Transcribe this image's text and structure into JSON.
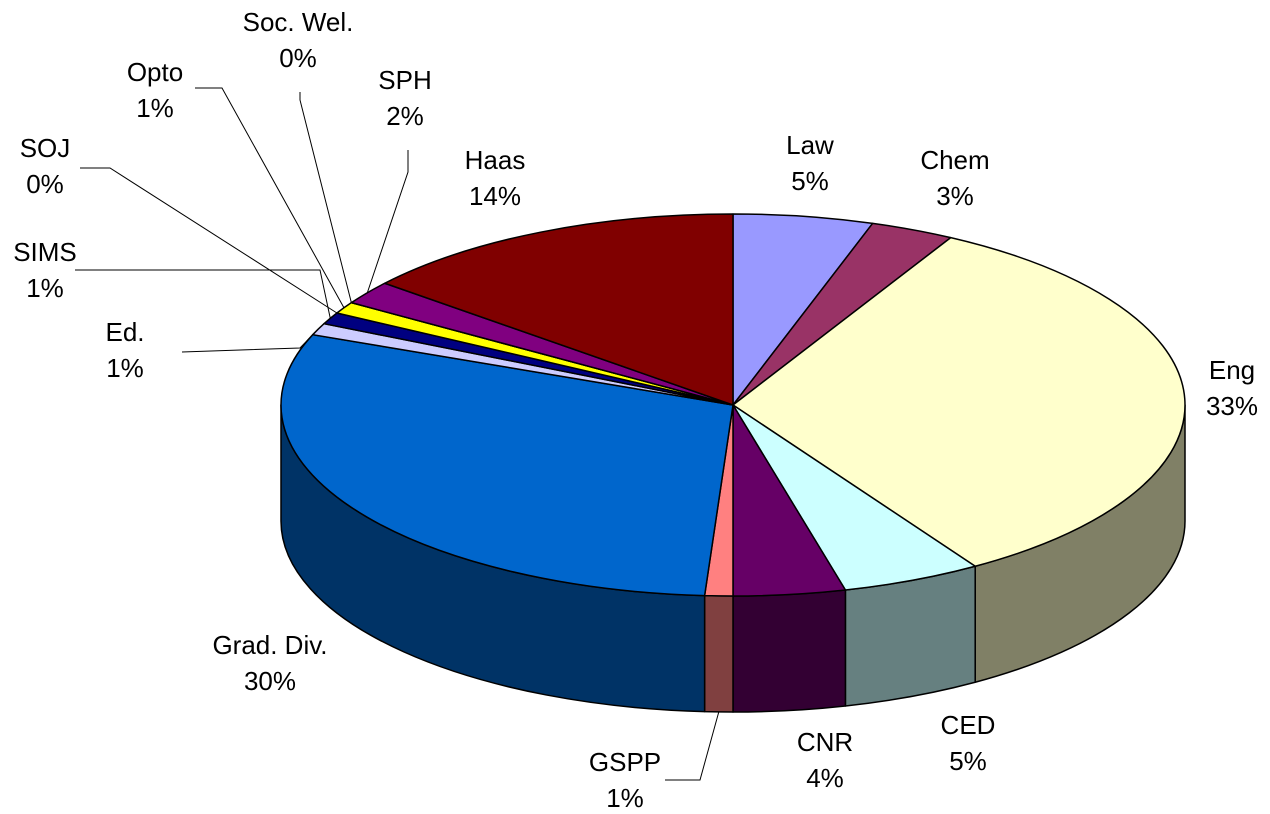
{
  "chart_data": {
    "type": "pie3d",
    "categories": [
      "Law",
      "Chem",
      "Eng",
      "CED",
      "CNR",
      "GSPP",
      "Grad. Div.",
      "Ed.",
      "SIMS",
      "SOJ",
      "Opto",
      "Soc. Wel.",
      "SPH",
      "Haas"
    ],
    "values": [
      5,
      3,
      33,
      5,
      4,
      1,
      30,
      1,
      1,
      0,
      1,
      0,
      2,
      14
    ],
    "value_labels": [
      "5%",
      "3%",
      "33%",
      "5%",
      "4%",
      "1%",
      "30%",
      "1%",
      "1%",
      "0%",
      "1%",
      "0%",
      "2%",
      "14%"
    ],
    "colors": [
      "#9999ff",
      "#993366",
      "#ffffcc",
      "#ccffff",
      "#660066",
      "#ff8080",
      "#0066cc",
      "#ccccff",
      "#000080",
      "#ff00ff",
      "#ffff00",
      "#00ffff",
      "#800080",
      "#800000"
    ]
  }
}
